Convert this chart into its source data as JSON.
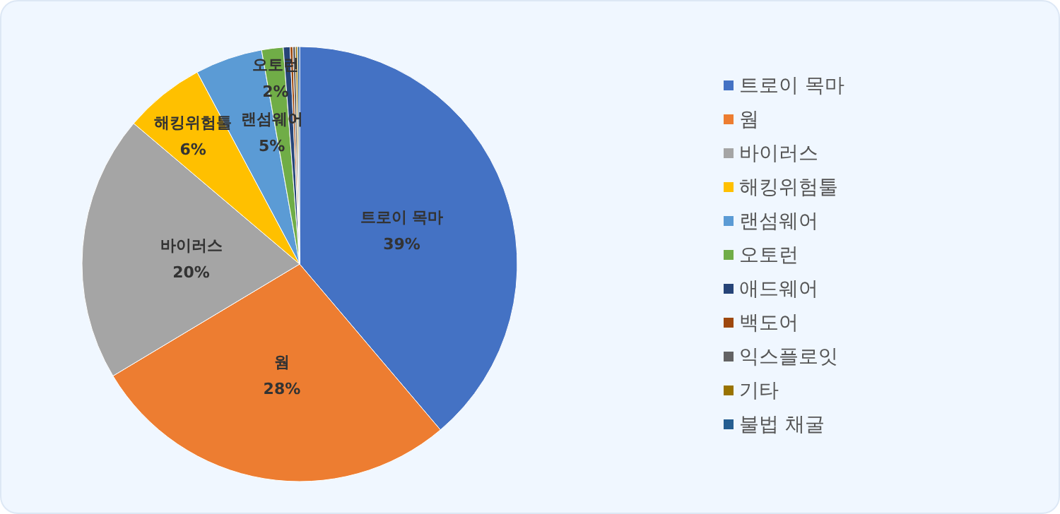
{
  "chart_data": {
    "type": "pie",
    "categories": [
      "트로이 목마",
      "웜",
      "바이러스",
      "해킹위험툴",
      "랜섬웨어",
      "오토런",
      "애드웨어",
      "백도어",
      "익스플로잇",
      "기타",
      "불법 채굴"
    ],
    "values": [
      38.8,
      27.6,
      19.8,
      6.0,
      5.0,
      1.6,
      0.5,
      0.2,
      0.2,
      0.15,
      0.15
    ],
    "value_labels": [
      "39%",
      "28%",
      "20%",
      "6%",
      "5%",
      "2%",
      null,
      null,
      null,
      null,
      null
    ],
    "colors": [
      "#4472c4",
      "#ed7d31",
      "#a5a5a5",
      "#ffc000",
      "#5b9bd5",
      "#70ad47",
      "#264478",
      "#9e480e",
      "#636363",
      "#997300",
      "#255e91"
    ],
    "legend": "right"
  }
}
